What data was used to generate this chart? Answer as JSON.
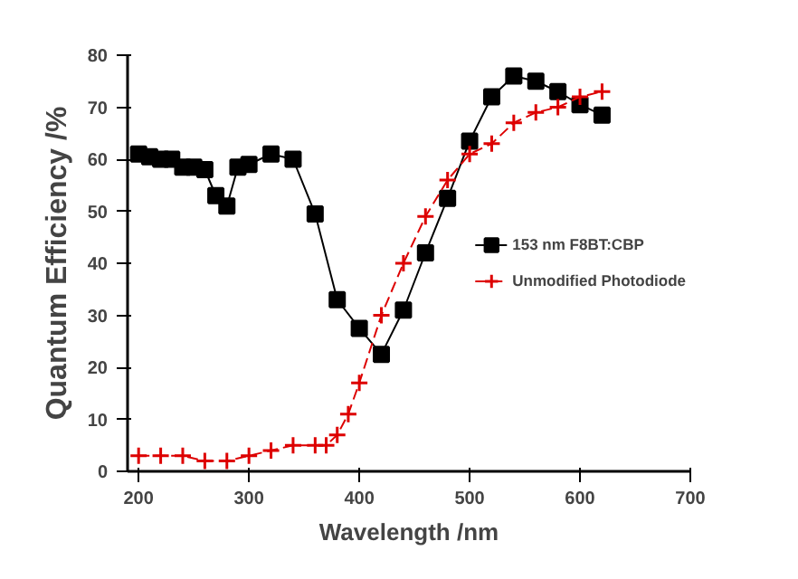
{
  "chart_data": {
    "type": "line",
    "xlabel": "Wavelength /nm",
    "ylabel": "Quantum Efficiency /%",
    "xlim": [
      190,
      700
    ],
    "xticks": [
      200,
      300,
      400,
      500,
      600,
      700
    ],
    "ylim": [
      0,
      80
    ],
    "yticks": [
      0,
      10,
      20,
      30,
      40,
      50,
      60,
      70,
      80
    ],
    "grid": false,
    "legend": "right",
    "series": [
      {
        "name": "153 nm F8BT:CBP",
        "color": "#000000",
        "marker": "square",
        "line_style": "solid",
        "x": [
          200,
          210,
          220,
          230,
          240,
          250,
          260,
          270,
          280,
          290,
          300,
          320,
          340,
          360,
          380,
          400,
          420,
          440,
          460,
          480,
          500,
          520,
          540,
          560,
          580,
          600,
          620
        ],
        "values": [
          61,
          60.5,
          60,
          60,
          58.5,
          58.5,
          58,
          53,
          51,
          58.5,
          59,
          61,
          60,
          49.5,
          33,
          27.5,
          22.5,
          31,
          42,
          52.5,
          63.5,
          72,
          76,
          75,
          73,
          70.5,
          68.5
        ]
      },
      {
        "name": "Unmodified Photodiode",
        "color": "#dd0000",
        "marker": "cross",
        "line_style": "dashed",
        "x": [
          200,
          220,
          240,
          260,
          280,
          300,
          320,
          340,
          360,
          370,
          380,
          390,
          400,
          420,
          440,
          460,
          480,
          500,
          520,
          540,
          560,
          580,
          600,
          620
        ],
        "values": [
          3,
          3,
          3,
          2,
          2,
          3,
          4,
          5,
          5,
          5,
          7,
          11,
          17,
          30,
          40,
          49,
          56,
          61,
          63,
          67,
          69,
          70,
          72,
          73
        ]
      }
    ]
  }
}
